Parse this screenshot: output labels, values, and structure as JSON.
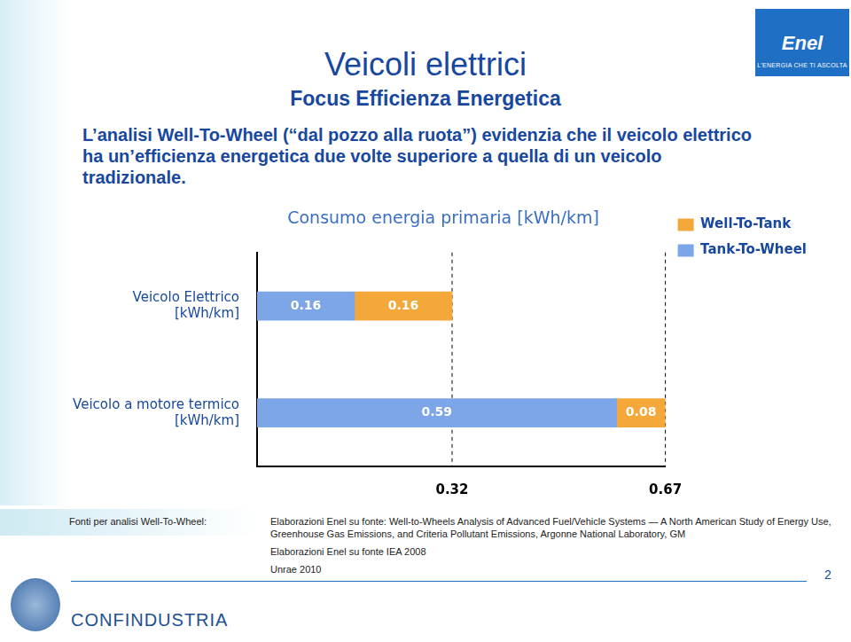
{
  "header": {
    "title": "Veicoli elettrici",
    "subtitle": "Focus Efficienza Energetica"
  },
  "intro": "L’analisi Well-To-Wheel (“dal pozzo alla ruota”) evidenzia che il veicolo elettrico ha un’efficienza energetica due volte superiore a quella di un veicolo tradizionale.",
  "chart_data": {
    "type": "bar",
    "title": "Consumo energia primaria [kWh/km]",
    "categories": [
      "Veicolo Elettrico [kWh/km]",
      "Veicolo a motore termico [kWh/km]"
    ],
    "series": [
      {
        "name": "Tank-To-Wheel",
        "color": "#7da6e8",
        "values": [
          0.16,
          0.59
        ]
      },
      {
        "name": "Well-To-Tank",
        "color": "#f4a83a",
        "values": [
          0.16,
          0.08
        ]
      }
    ],
    "orientation": "horizontal",
    "stacked": true,
    "data_labels": true,
    "legend": "top-right",
    "xlim": [
      0,
      0.67
    ],
    "xticks": [
      0.32,
      0.67
    ],
    "grid": true
  },
  "sources": {
    "label": "Fonti per analisi Well-To-Wheel:",
    "items": [
      "Elaborazioni Enel su fonte: Well-to-Wheels Analysis of Advanced Fuel/Vehicle Systems — A North American Study of Energy Use, Greenhouse Gas Emissions, and Criteria Pollutant Emissions, Argonne National Laboratory, GM",
      "Elaborazioni Enel su fonte IEA 2008",
      "Unrae 2010"
    ]
  },
  "logos": {
    "enel": "Enel",
    "enel_tagline": "L’ENERGIA CHE TI ASCOLTA",
    "confindustria": "CONFINDUSTRIA"
  },
  "page_number": 2
}
